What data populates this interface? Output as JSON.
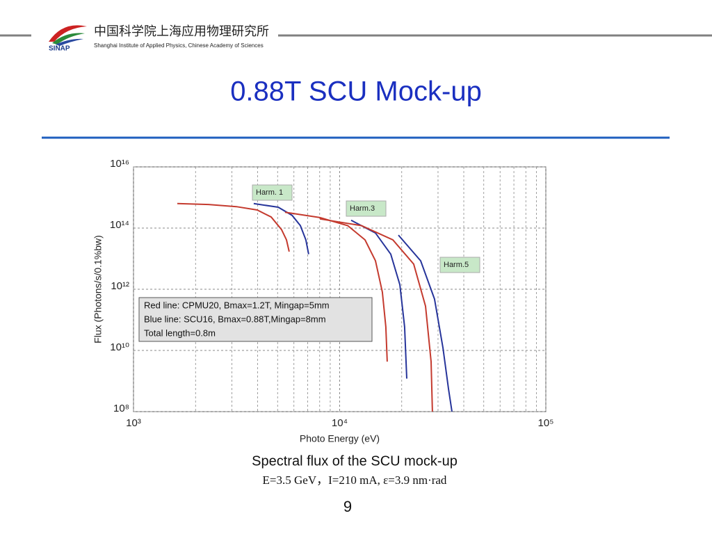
{
  "header": {
    "org_cn": "中国科学院上海应用物理研究所",
    "org_en": "Shanghai Institute of Applied Physics, Chinese Academy of Sciences",
    "logo": "SINAP"
  },
  "title": "0.88T SCU Mock-up",
  "chart_data": {
    "type": "line",
    "x_label": "Photo Energy (eV)",
    "y_label": "Flux (Photons/s/0.1%bw)",
    "xscale": "log",
    "yscale": "log",
    "grid": true,
    "minor_grid": true,
    "xlim": [
      1000,
      100000
    ],
    "xticks": [
      {
        "value": 1000,
        "label": "10³"
      },
      {
        "value": 10000,
        "label": "10⁴"
      },
      {
        "value": 100000,
        "label": "10⁵"
      }
    ],
    "ylim": [
      100000000,
      10000000000000000
    ],
    "yticks": [
      {
        "value": 100000000,
        "label": "10⁸"
      },
      {
        "value": 10000000000,
        "label": "10¹⁰"
      },
      {
        "value": 1000000000000,
        "label": "10¹²"
      },
      {
        "value": 100000000000000,
        "label": "10¹⁴"
      },
      {
        "value": 10000000000000000,
        "label": "10¹⁶"
      }
    ],
    "series": [
      {
        "color": "#c43a2e",
        "x": [
          1631,
          2311,
          3155,
          3981,
          4652,
          5224,
          5519,
          5690
        ],
        "values": [
          630000000000000.0,
          590000000000000.0,
          500000000000000.0,
          390000000000000.0,
          230000000000000.0,
          89000000000000.0,
          41000000000000.0,
          17000000000000.0
        ]
      },
      {
        "color": "#26349a",
        "x": [
          3828,
          5035,
          5877,
          6447,
          6855,
          7074
        ],
        "values": [
          630000000000000.0,
          480000000000000.0,
          260000000000000.0,
          120000000000000.0,
          41000000000000.0,
          14000000000000.0
        ]
      },
      {
        "color": "#c43a2e",
        "x": [
          5430,
          8013,
          10940,
          13280,
          14920,
          16110,
          16750,
          17010
        ],
        "values": [
          330000000000000.0,
          220000000000000.0,
          120000000000000.0,
          41000000000000.0,
          8500000000000.0,
          810000000000.0,
          59000000000.0,
          4300000000.0
        ]
      },
      {
        "color": "#26349a",
        "x": [
          11370,
          14920,
          17700,
          19590,
          20650,
          21150
        ],
        "values": [
          180000000000000.0,
          69000000000000.0,
          14000000000000.0,
          1400000000000.0,
          59000000000.0,
          1200000000.0
        ]
      },
      {
        "color": "#c43a2e",
        "x": [
          8013,
          12760,
          18110,
          22860,
          26100,
          27760,
          28170
        ],
        "values": [
          200000000000000.0,
          120000000000000.0,
          41000000000000.0,
          6600000000000.0,
          280000000000.0,
          4300000000.0,
          100000000.0
        ]
      },
      {
        "color": "#26349a",
        "x": [
          19280,
          24720,
          28840,
          31700,
          33730,
          35060
        ],
        "values": [
          59000000000000.0,
          8500000000000.0,
          480000000000.0,
          12000000000.0,
          540000000.0,
          100000000.0
        ]
      }
    ],
    "annotations": [
      "Harm. 1",
      "Harm.3",
      "Harm.5"
    ],
    "legend_text": [
      "Red line: CPMU20, Bmax=1.2T, Mingap=5mm",
      "Blue line: SCU16, Bmax=0.88T,Mingap=8mm",
      "Total length=0.8m"
    ]
  },
  "caption": "Spectral flux of the SCU mock-up",
  "caption_sub": "E=3.5 GeV，I=210 mA, ε=3.9 nm·rad",
  "page_number": "9"
}
